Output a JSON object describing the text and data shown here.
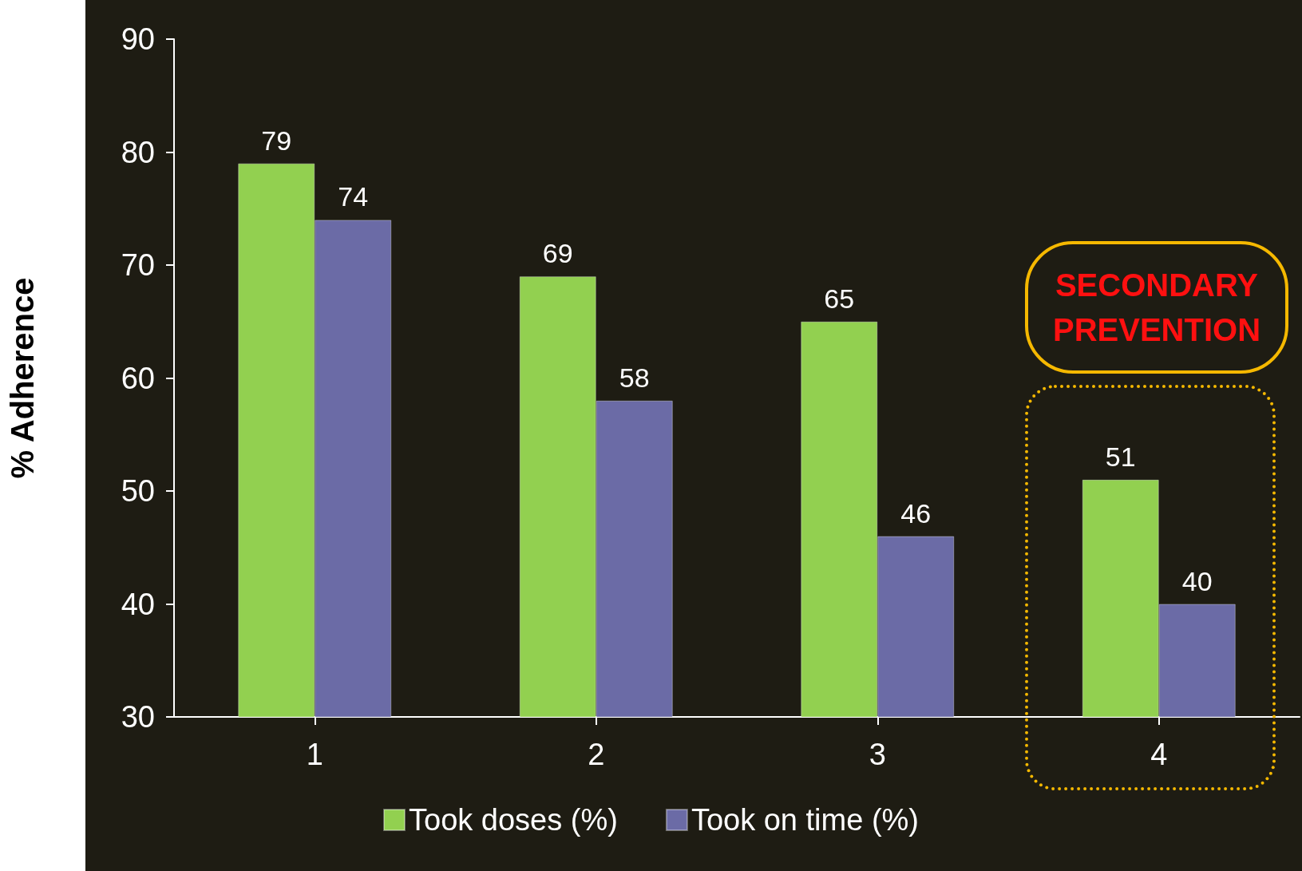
{
  "chart_data": {
    "type": "bar",
    "ylabel": "% Adherence",
    "categories": [
      "1",
      "2",
      "3",
      "4"
    ],
    "series": [
      {
        "name": "Took doses (%)",
        "color": "#92d050",
        "values": [
          79,
          69,
          65,
          51
        ]
      },
      {
        "name": "Took on time (%)",
        "color": "#6b6ba6",
        "values": [
          74,
          58,
          46,
          40
        ]
      }
    ],
    "ylim": [
      30,
      90
    ],
    "yticks": [
      30,
      40,
      50,
      60,
      70,
      80,
      90
    ],
    "grid": false,
    "legend": "bottom",
    "data_labels": true,
    "annotations": [
      "SECONDARY PREVENTION"
    ]
  }
}
